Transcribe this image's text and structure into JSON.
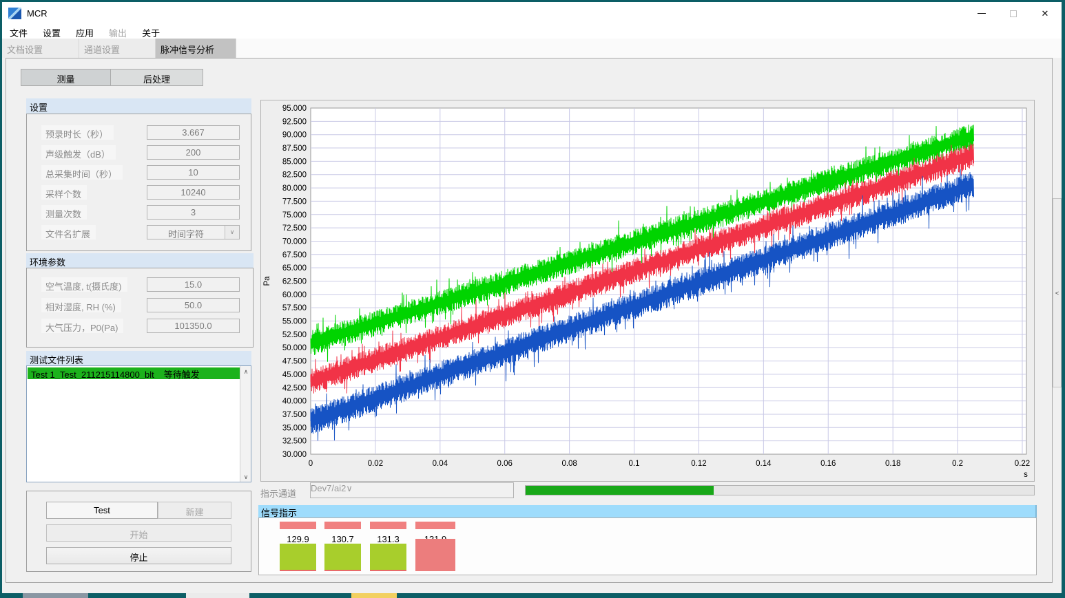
{
  "window": {
    "title": "MCR"
  },
  "menu": {
    "items": [
      {
        "label": "文件",
        "enabled": true
      },
      {
        "label": "设置",
        "enabled": true
      },
      {
        "label": "应用",
        "enabled": true
      },
      {
        "label": "输出",
        "enabled": false
      },
      {
        "label": "关于",
        "enabled": true
      }
    ]
  },
  "tabs": [
    {
      "label": "文档设置",
      "active": false
    },
    {
      "label": "通道设置",
      "active": false
    },
    {
      "label": "脉冲信号分析",
      "active": true
    }
  ],
  "subtabs": {
    "measure": "测量",
    "post_process": "后处理"
  },
  "settings": {
    "title": "设置",
    "rows": [
      {
        "label": "预录时长（秒）",
        "value": "3.667"
      },
      {
        "label": "声级触发（dB）",
        "value": "200"
      },
      {
        "label": "总采集时间（秒）",
        "value": "10"
      },
      {
        "label": "采样个数",
        "value": "10240"
      },
      {
        "label": "测量次数",
        "value": "3"
      }
    ],
    "filename_ext": {
      "label": "文件名扩展",
      "value": "时间字符"
    }
  },
  "environment": {
    "title": "环境参数",
    "rows": [
      {
        "label": "空气温度, t(摄氏度)",
        "value": "15.0"
      },
      {
        "label": "相对湿度, RH (%)",
        "value": "50.0"
      },
      {
        "label": "大气压力，P0(Pa)",
        "value": "101350.0"
      }
    ]
  },
  "file_list": {
    "title": "测试文件列表",
    "rows": [
      {
        "name": "Test 1_Test_211215114800_blt",
        "status": "等待触发"
      }
    ]
  },
  "controls": {
    "test_name": "Test",
    "new_label": "新建",
    "start_label": "开始",
    "stop_label": "停止"
  },
  "indicator_channel": {
    "label": "指示通道",
    "value": "Dev7/ai2",
    "progress_percent": 37
  },
  "signal_panel": {
    "title": "信号指示",
    "indicators": [
      {
        "value": "129.9",
        "state": "green"
      },
      {
        "value": "130.7",
        "state": "green"
      },
      {
        "value": "131.3",
        "state": "green"
      },
      {
        "value": "131.9",
        "state": "red"
      }
    ]
  },
  "colors": {
    "group_header_blue": "#d9e6f4",
    "signal_header_blue": "#9edcfc",
    "list_row_green": "#1cb21c",
    "progress_green": "#19a819",
    "indicator_green": "#a8ce2c",
    "indicator_red": "#ec7d7d"
  },
  "chart_data": {
    "type": "line",
    "title": "",
    "xlabel": "s",
    "ylabel": "Pa",
    "xlim": [
      0,
      0.22
    ],
    "ylim": [
      30,
      95
    ],
    "grid": true,
    "legend": "none",
    "x_ticks": [
      "0",
      "0.02",
      "0.04",
      "0.06",
      "0.08",
      "0.1",
      "0.12",
      "0.14",
      "0.16",
      "0.18",
      "0.2",
      "0.22"
    ],
    "y_ticks": [
      "30.000",
      "32.500",
      "35.000",
      "37.500",
      "40.000",
      "42.500",
      "45.000",
      "47.500",
      "50.000",
      "52.500",
      "55.000",
      "57.500",
      "60.000",
      "62.500",
      "65.000",
      "67.500",
      "70.000",
      "72.500",
      "75.000",
      "77.500",
      "80.000",
      "82.500",
      "85.000",
      "87.500",
      "90.000",
      "92.500",
      "95.000"
    ],
    "x_data_start": 0,
    "x_data_end": 0.205,
    "series": [
      {
        "name": "green-trace",
        "color": "#00d400",
        "start_pa": 50.8,
        "end_pa": 89.8,
        "band_halfwidth_pa": 2.4,
        "spike_pa": 2.8
      },
      {
        "name": "red-trace",
        "color": "#f13347",
        "start_pa": 43.6,
        "end_pa": 86.2,
        "band_halfwidth_pa": 2.4,
        "spike_pa": 2.8
      },
      {
        "name": "blue-trace",
        "color": "#1653c4",
        "start_pa": 36.2,
        "end_pa": 80.6,
        "band_halfwidth_pa": 2.6,
        "spike_pa": 3.2
      }
    ]
  }
}
